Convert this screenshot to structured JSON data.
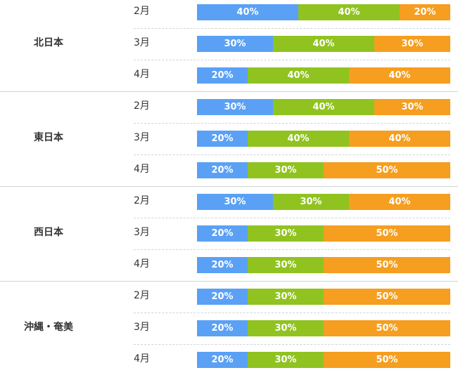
{
  "chart_data": {
    "type": "bar",
    "stacked": true,
    "orientation": "horizontal",
    "colors": [
      "#5aa1f5",
      "#90c31f",
      "#f59e1f"
    ],
    "regions": [
      {
        "name": "北日本",
        "months": [
          {
            "month": "2月",
            "values": [
              40,
              40,
              20
            ],
            "labels": [
              "40%",
              "40%",
              "20%"
            ]
          },
          {
            "month": "3月",
            "values": [
              30,
              40,
              30
            ],
            "labels": [
              "30%",
              "40%",
              "30%"
            ]
          },
          {
            "month": "4月",
            "values": [
              20,
              40,
              40
            ],
            "labels": [
              "20%",
              "40%",
              "40%"
            ]
          }
        ]
      },
      {
        "name": "東日本",
        "months": [
          {
            "month": "2月",
            "values": [
              30,
              40,
              30
            ],
            "labels": [
              "30%",
              "40%",
              "30%"
            ]
          },
          {
            "month": "3月",
            "values": [
              20,
              40,
              40
            ],
            "labels": [
              "20%",
              "40%",
              "40%"
            ]
          },
          {
            "month": "4月",
            "values": [
              20,
              30,
              50
            ],
            "labels": [
              "20%",
              "30%",
              "50%"
            ]
          }
        ]
      },
      {
        "name": "西日本",
        "months": [
          {
            "month": "2月",
            "values": [
              30,
              30,
              40
            ],
            "labels": [
              "30%",
              "30%",
              "40%"
            ]
          },
          {
            "month": "3月",
            "values": [
              20,
              30,
              50
            ],
            "labels": [
              "20%",
              "30%",
              "50%"
            ]
          },
          {
            "month": "4月",
            "values": [
              20,
              30,
              50
            ],
            "labels": [
              "20%",
              "30%",
              "50%"
            ]
          }
        ]
      },
      {
        "name": "沖縄・奄美",
        "months": [
          {
            "month": "2月",
            "values": [
              20,
              30,
              50
            ],
            "labels": [
              "20%",
              "30%",
              "50%"
            ]
          },
          {
            "month": "3月",
            "values": [
              20,
              30,
              50
            ],
            "labels": [
              "20%",
              "30%",
              "50%"
            ]
          },
          {
            "month": "4月",
            "values": [
              20,
              30,
              50
            ],
            "labels": [
              "20%",
              "30%",
              "50%"
            ]
          }
        ]
      }
    ]
  }
}
